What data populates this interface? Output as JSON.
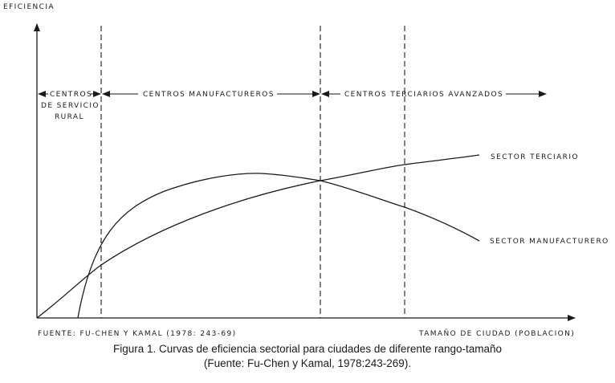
{
  "axis": {
    "y_label": "EFICIENCIA",
    "x_label": "TAMAÑO DE CIUDAD (POBLACION)"
  },
  "zones": {
    "rural": [
      "CENTROS",
      "DE SERVICIO",
      "RURAL"
    ],
    "manufacturing": "CENTROS MANUFACTUREROS",
    "tertiary": "CENTROS TERCIARIOS AVANZADOS"
  },
  "curves": {
    "tertiary": "SECTOR TERCIARIO",
    "manufacturing": "SECTOR MANUFACTURERO"
  },
  "source": "FUENTE: FU-CHEN Y KAMAL (1978: 243-69)",
  "caption": {
    "line1": "Figura 1.  Curvas de eficiencia sectorial para ciudades de diferente rango-tamaño",
    "line2": "(Fuente: Fu-Chen y Kamal, 1978:243-269)."
  }
}
